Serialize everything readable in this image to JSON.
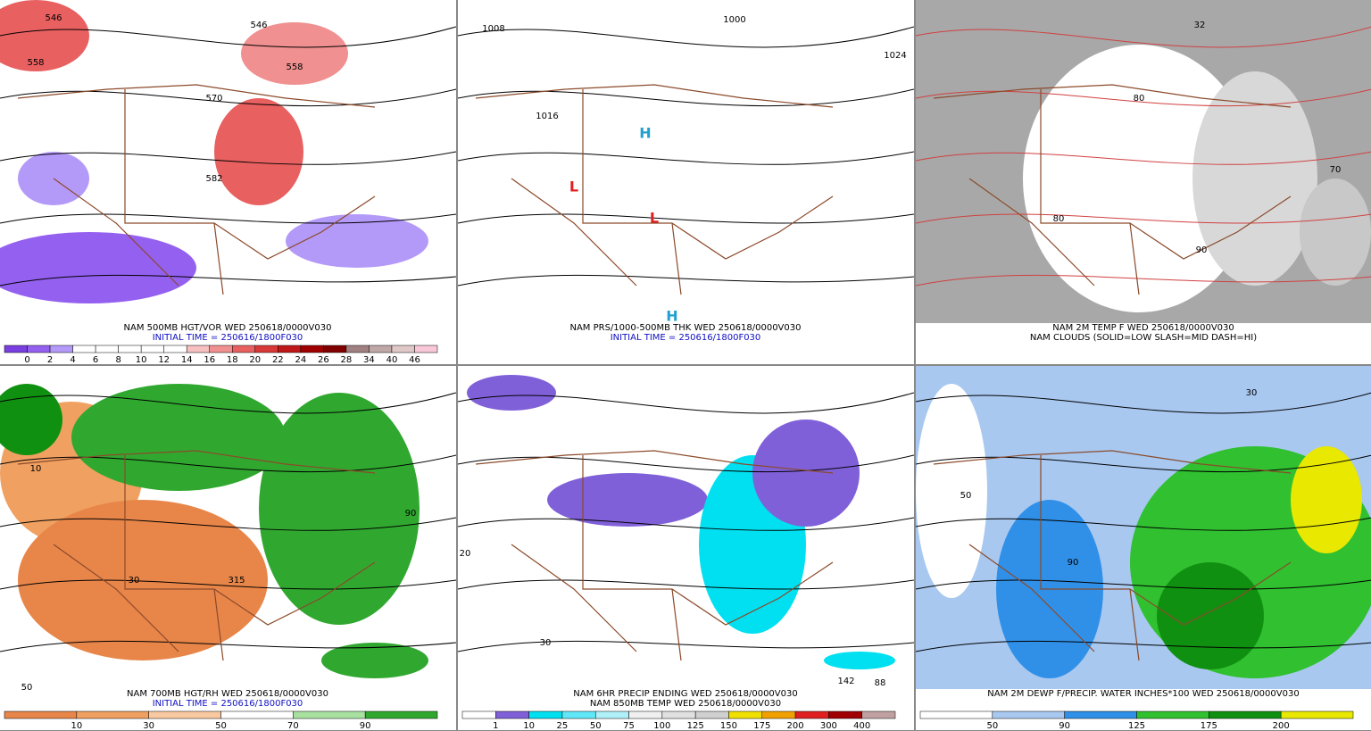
{
  "panels": [
    {
      "caption": [
        "NAM 500MB HGT/VOR WED 250618/0000V030",
        "INITIAL TIME = 250616/1800F030"
      ],
      "annotations": [
        "546",
        "558",
        "570",
        "582",
        "546",
        "558"
      ],
      "colorbar": {
        "colors": [
          "#7a3fe0",
          "#9460f0",
          "#b49af8",
          "#ffffff",
          "#ffffff",
          "#ffffff",
          "#ffffff",
          "#ffffff",
          "#f6c0c0",
          "#f09090",
          "#e86060",
          "#d83838",
          "#c01818",
          "#a00000",
          "#800000",
          "#a08080",
          "#c0a8a8",
          "#e0c8c8",
          "#f8c8d8"
        ],
        "labels": [
          "0",
          "2",
          "4",
          "6",
          "8",
          "10",
          "12",
          "14",
          "16",
          "18",
          "20",
          "22",
          "24",
          "26",
          "28",
          "34",
          "40",
          "46"
        ]
      }
    },
    {
      "caption": [
        "NAM PRS/1000-500MB THK WED 250618/0000V030",
        "INITIAL TIME = 250616/1800F030"
      ],
      "annotations": [
        "1008",
        "1000",
        "1016",
        "1024",
        "H",
        "L",
        "L",
        "H"
      ]
    },
    {
      "caption": [
        "NAM 2M TEMP F WED 250618/0000V030",
        "NAM CLOUDS (SOLID=LOW SLASH=MID DASH=HI)"
      ],
      "annotations": [
        "32",
        "80",
        "80",
        "90",
        "70"
      ]
    },
    {
      "caption": [
        "NAM 700MB HGT/RH WED 250618/0000V030",
        "INITIAL TIME = 250616/1800F030"
      ],
      "annotations": [
        "50",
        "10",
        "30",
        "90",
        "315"
      ],
      "colorbar": {
        "colors": [
          "#e8864a",
          "#f0a060",
          "#f8c8a0",
          "#ffffff",
          "#a8e0a0",
          "#30a830"
        ],
        "labels": [
          "10",
          "30",
          "50",
          "70",
          "90"
        ]
      }
    },
    {
      "caption": [
        "NAM 6HR PRECIP ENDING WED 250618/0000V030",
        "NAM 850MB TEMP WED 250618/0000V030"
      ],
      "annotations": [
        "30",
        "20",
        "142",
        "88"
      ],
      "colorbar": {
        "colors": [
          "#ffffff",
          "#8060d8",
          "#00e0f0",
          "#60e8f8",
          "#b0f0f8",
          "#f0f0f0",
          "#e0e0e0",
          "#d0d0d0",
          "#f0e000",
          "#f0a000",
          "#e02020",
          "#a00000",
          "#c0a0a0"
        ],
        "labels": [
          "1",
          "10",
          "25",
          "50",
          "75",
          "100",
          "125",
          "150",
          "175",
          "200",
          "300",
          "400"
        ]
      }
    },
    {
      "caption": [
        "NAM 2M DEWP F/PRECIP. WATER INCHES*100 WED 250618/0000V030"
      ],
      "annotations": [
        "30",
        "50",
        "90"
      ],
      "colorbar": {
        "colors": [
          "#ffffff",
          "#a8c8f0",
          "#3090e8",
          "#30c030",
          "#109010",
          "#e8e800"
        ],
        "labels": [
          "50",
          "90",
          "125",
          "175",
          "200"
        ]
      }
    }
  ]
}
